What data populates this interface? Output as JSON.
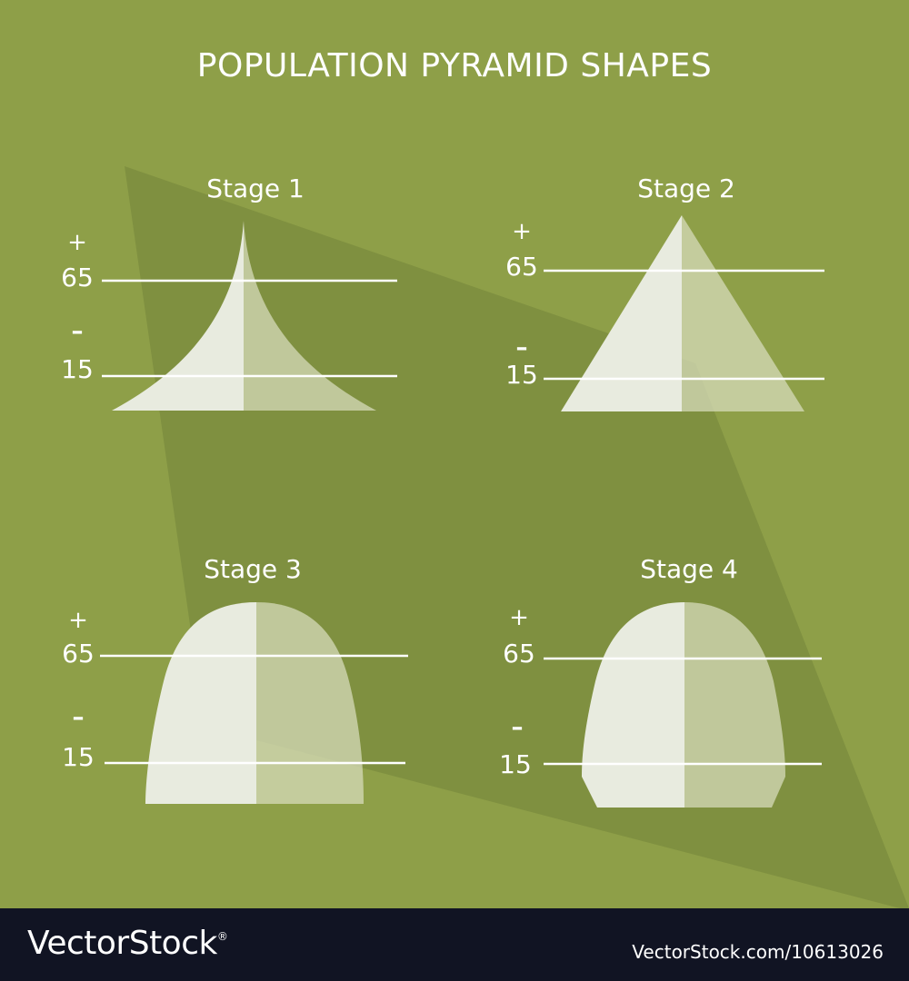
{
  "title": "POPULATION PYRAMID SHAPES",
  "panels": [
    {
      "label": "Stage 1",
      "upper_marker": "+",
      "upper_age": "65",
      "lower_marker": "–",
      "lower_age": "15"
    },
    {
      "label": "Stage 2",
      "upper_marker": "+",
      "upper_age": "65",
      "lower_marker": "–",
      "lower_age": "15"
    },
    {
      "label": "Stage 3",
      "upper_marker": "+",
      "upper_age": "65",
      "lower_marker": "–",
      "lower_age": "15"
    },
    {
      "label": "Stage 4",
      "upper_marker": "+",
      "upper_age": "65",
      "lower_marker": "–",
      "lower_age": "15"
    }
  ],
  "footer": {
    "brand": "VectorStock",
    "brand_mark": "®",
    "credit": "VectorStock.com/10613026"
  },
  "colors": {
    "background": "#8e9f48",
    "shadow": "#7f9040",
    "left_half": "#e8ebdf",
    "right_half": "#c9d1a6",
    "footer": "#111423"
  }
}
